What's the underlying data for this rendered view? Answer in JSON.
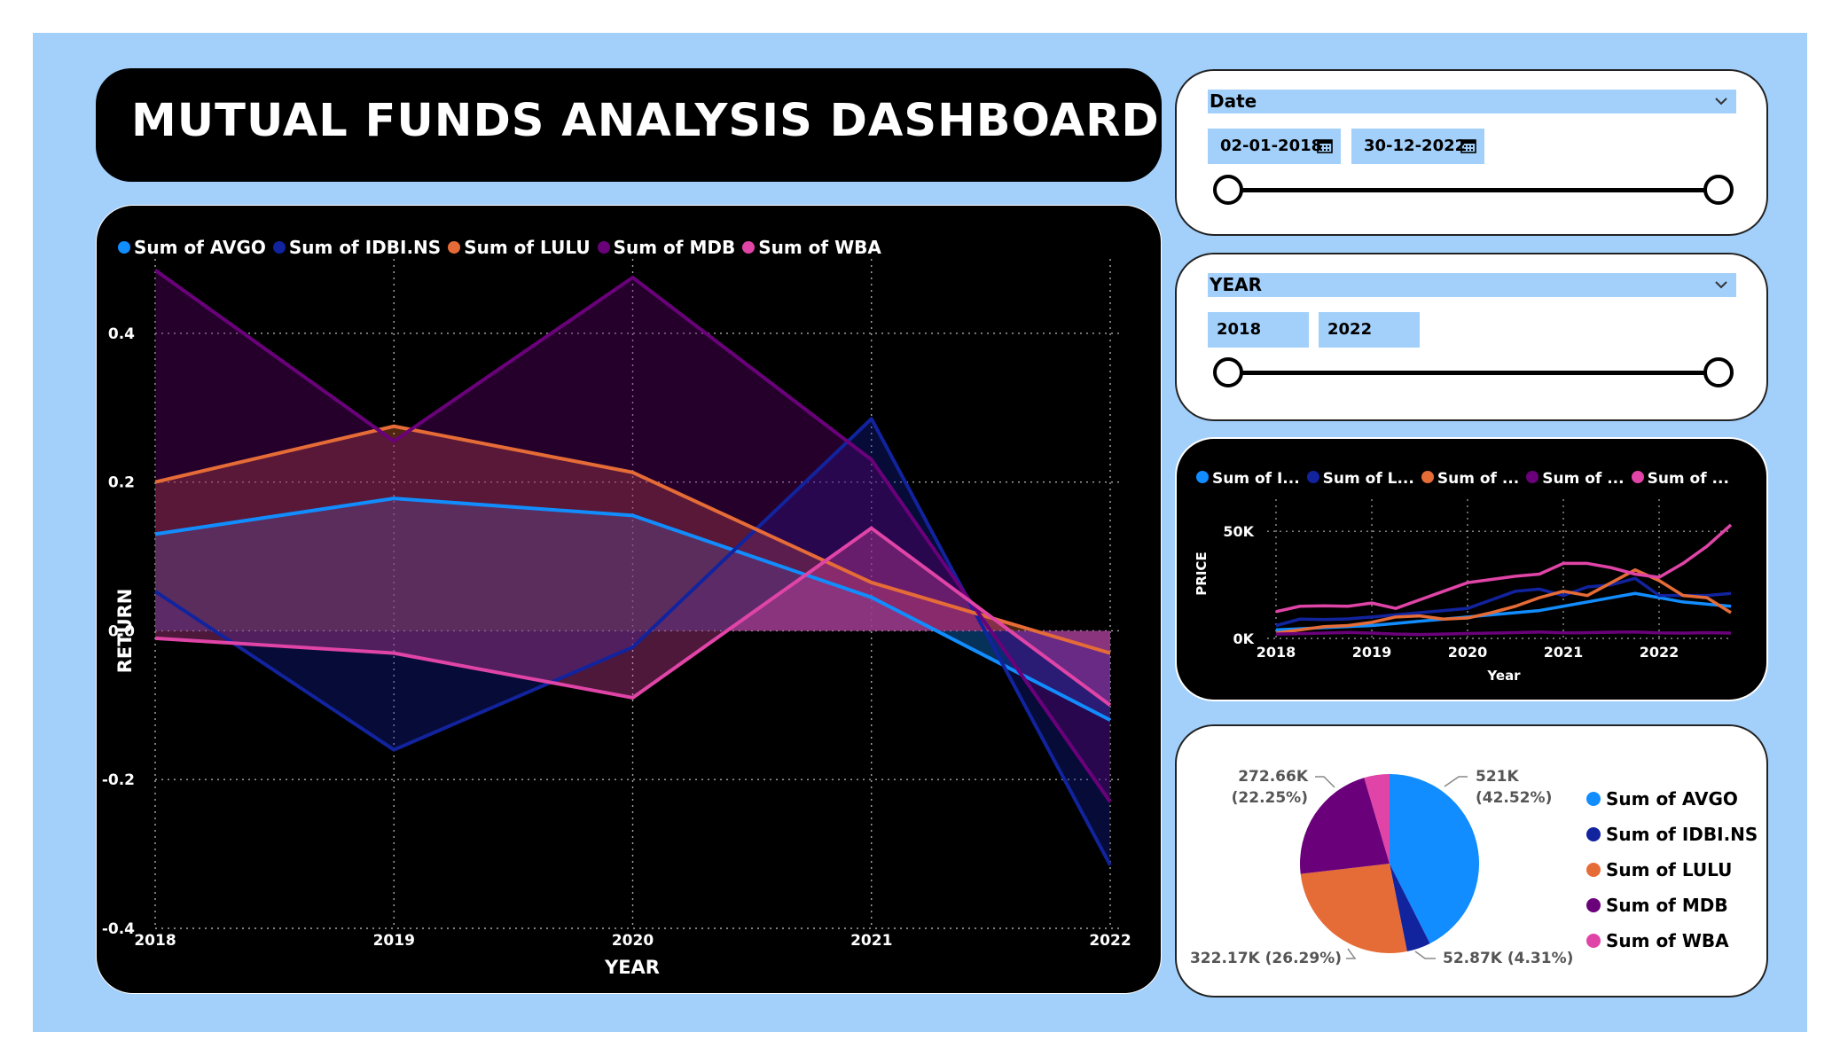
{
  "title": "MUTUAL FUNDS ANALYSIS DASHBOARD",
  "colors": {
    "AVGO": "#118dff",
    "IDBI": "#12239e",
    "LULU": "#e66c37",
    "MDB": "#6b007b",
    "WBA": "#e044a7",
    "frame": "#a3d0fb"
  },
  "date_slicer": {
    "header": "Date",
    "start": "02-01-2018",
    "end": "30-12-2022",
    "handle_start_fraction": 0,
    "handle_end_fraction": 1
  },
  "year_slicer": {
    "header": "YEAR",
    "start": "2018",
    "end": "2022",
    "handle_start_fraction": 0,
    "handle_end_fraction": 1
  },
  "chart_data": [
    {
      "type": "area",
      "xlabel": "YEAR",
      "ylabel": "RETURN",
      "x": [
        "2018",
        "2019",
        "2020",
        "2021",
        "2022"
      ],
      "ylim": [
        -0.4,
        0.5
      ],
      "yticks": [
        0.4,
        0.2,
        0.0,
        -0.2,
        -0.4
      ],
      "ytick_labels": [
        "0.4",
        "0.2",
        "0.0",
        "-0.2",
        "-0.4"
      ],
      "grid": true,
      "legend_position": "top-left",
      "series": [
        {
          "name": "Sum of AVGO",
          "key": "AVGO",
          "values": [
            0.13,
            0.178,
            0.155,
            0.045,
            -0.12
          ]
        },
        {
          "name": "Sum of IDBI.NS",
          "key": "IDBI",
          "values": [
            0.053,
            -0.16,
            -0.022,
            0.285,
            -0.315
          ]
        },
        {
          "name": "Sum of LULU",
          "key": "LULU",
          "values": [
            0.2,
            0.275,
            0.213,
            0.065,
            -0.03
          ]
        },
        {
          "name": "Sum of MDB",
          "key": "MDB",
          "values": [
            0.485,
            0.255,
            0.475,
            0.23,
            -0.23
          ]
        },
        {
          "name": "Sum of WBA",
          "key": "WBA",
          "values": [
            -0.01,
            -0.03,
            -0.09,
            0.138,
            -0.1
          ]
        }
      ]
    },
    {
      "type": "line",
      "xlabel": "Year",
      "ylabel": "PRICE",
      "xtick_labels": [
        "2018",
        "2019",
        "2020",
        "2021",
        "2022"
      ],
      "xlim": [
        2018,
        2022.75
      ],
      "ylim": [
        0,
        60000
      ],
      "yticks": [
        0,
        50000
      ],
      "ytick_labels": [
        "0K",
        "50K"
      ],
      "grid": true,
      "legend_position": "top-left",
      "x": [
        2018.0,
        2018.25,
        2018.5,
        2018.75,
        2019.0,
        2019.25,
        2019.5,
        2019.75,
        2020.0,
        2020.25,
        2020.5,
        2020.75,
        2021.0,
        2021.25,
        2021.5,
        2021.75,
        2022.0,
        2022.25,
        2022.5,
        2022.75
      ],
      "series": [
        {
          "name": "Sum of I...",
          "key": "AVGO",
          "values": [
            4000,
            4500,
            5000,
            5500,
            6000,
            7000,
            8000,
            9000,
            10000,
            11000,
            12000,
            13000,
            15000,
            17000,
            19000,
            21000,
            19000,
            17000,
            16000,
            15000
          ]
        },
        {
          "name": "Sum of L...",
          "key": "IDBI",
          "values": [
            6000,
            9000,
            8800,
            9100,
            10000,
            11000,
            12000,
            13000,
            14000,
            18000,
            22000,
            23000,
            20000,
            24000,
            25000,
            28000,
            20000,
            20000,
            20000,
            21000
          ]
        },
        {
          "name": "Sum of ...",
          "key": "LULU",
          "values": [
            2500,
            4000,
            5500,
            6000,
            7500,
            10000,
            10500,
            9000,
            9500,
            12000,
            15000,
            19000,
            22000,
            20000,
            26000,
            32000,
            27000,
            20000,
            19000,
            12000
          ]
        },
        {
          "name": "Sum of ...",
          "key": "MDB",
          "values": [
            2000,
            2200,
            2500,
            2800,
            2500,
            2000,
            1800,
            2000,
            2300,
            2500,
            2700,
            3000,
            2600,
            2700,
            2900,
            3000,
            2600,
            2500,
            2700,
            2500
          ]
        },
        {
          "name": "Sum of ...",
          "key": "WBA",
          "values": [
            12500,
            15000,
            15200,
            15000,
            16500,
            14000,
            18000,
            22000,
            26000,
            27500,
            29000,
            30000,
            35000,
            35000,
            33000,
            30000,
            28500,
            35000,
            43000,
            53000
          ]
        }
      ]
    },
    {
      "type": "pie",
      "legend_position": "right",
      "slices": [
        {
          "name": "Sum of AVGO",
          "key": "AVGO",
          "value": 521000,
          "label": "521K",
          "pct": "(42.52%)"
        },
        {
          "name": "Sum of IDBI.NS",
          "key": "IDBI",
          "value": 52870,
          "label": "52.87K (4.31%)"
        },
        {
          "name": "Sum of LULU",
          "key": "LULU",
          "value": 322170,
          "label": "322.17K (26.29%)"
        },
        {
          "name": "Sum of MDB",
          "key": "MDB",
          "value": 272660,
          "label": "272.66K",
          "pct": "(22.25%)"
        },
        {
          "name": "Sum of WBA",
          "key": "WBA",
          "value": 56000
        }
      ]
    }
  ]
}
